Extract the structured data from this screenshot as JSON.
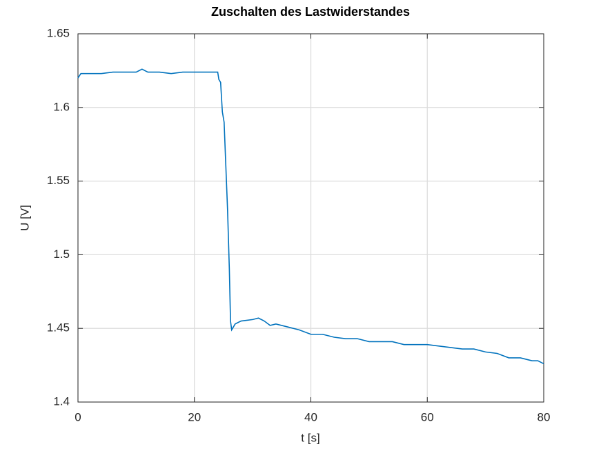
{
  "chart_data": {
    "type": "line",
    "title": "Zuschalten des Lastwiderstandes",
    "x_label": "t [s]",
    "y_label": "U [V]",
    "x": [
      0,
      0.5,
      2,
      4,
      6,
      8,
      10,
      11,
      12,
      14,
      16,
      18,
      20,
      22,
      24,
      24.2,
      24.5,
      24.8,
      25.1,
      25.4,
      25.7,
      26,
      26.2,
      26.4,
      27,
      28,
      30,
      31,
      32,
      33,
      34,
      36,
      38,
      40,
      42,
      44,
      46,
      48,
      50,
      52,
      54,
      56,
      58,
      60,
      62,
      64,
      66,
      68,
      70,
      72,
      74,
      76,
      78,
      79,
      80
    ],
    "series": [
      {
        "name": "U",
        "color": "#0072bd",
        "values": [
          1.62,
          1.623,
          1.623,
          1.623,
          1.624,
          1.624,
          1.624,
          1.626,
          1.624,
          1.624,
          1.623,
          1.624,
          1.624,
          1.624,
          1.624,
          1.619,
          1.617,
          1.597,
          1.59,
          1.56,
          1.53,
          1.49,
          1.455,
          1.449,
          1.453,
          1.455,
          1.456,
          1.457,
          1.455,
          1.452,
          1.453,
          1.451,
          1.449,
          1.446,
          1.446,
          1.444,
          1.443,
          1.443,
          1.441,
          1.441,
          1.441,
          1.439,
          1.439,
          1.439,
          1.438,
          1.437,
          1.436,
          1.436,
          1.434,
          1.433,
          1.43,
          1.43,
          1.428,
          1.428,
          1.426
        ]
      }
    ],
    "xlim": [
      0,
      80
    ],
    "xticks": [
      0,
      20,
      40,
      60,
      80
    ],
    "ylim": [
      1.4,
      1.65
    ],
    "yticks": [
      1.4,
      1.45,
      1.5,
      1.55,
      1.6,
      1.65
    ],
    "grid": true
  }
}
